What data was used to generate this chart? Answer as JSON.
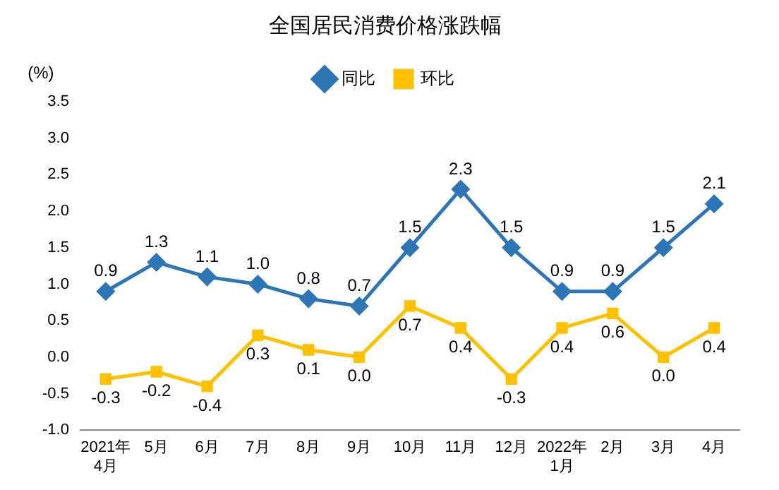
{
  "chart_data": {
    "type": "line",
    "title": "全国居民消费价格涨跌幅",
    "ylabel": "(%)",
    "categories": [
      "2021年\n4月",
      "5月",
      "6月",
      "7月",
      "8月",
      "9月",
      "10月",
      "11月",
      "12月",
      "2022年\n1月",
      "2月",
      "3月",
      "4月"
    ],
    "series": [
      {
        "name": "同比",
        "color": "#2e75b6",
        "marker": "diamond",
        "values": [
          0.9,
          1.3,
          1.1,
          1.0,
          0.8,
          0.7,
          1.5,
          2.3,
          1.5,
          0.9,
          0.9,
          1.5,
          2.1
        ],
        "value_labels": [
          "0.9",
          "1.3",
          "1.1",
          "1.0",
          "0.8",
          "0.7",
          "1.5",
          "2.3",
          "1.5",
          "0.9",
          "0.9",
          "1.5",
          "2.1"
        ]
      },
      {
        "name": "环比",
        "color": "#ffc000",
        "marker": "square",
        "values": [
          -0.3,
          -0.2,
          -0.4,
          0.3,
          0.1,
          0.0,
          0.7,
          0.4,
          -0.3,
          0.4,
          0.6,
          0.0,
          0.4
        ],
        "value_labels": [
          "-0.3",
          "-0.2",
          "-0.4",
          "0.3",
          "0.1",
          "0.0",
          "0.7",
          "0.4",
          "-0.3",
          "0.4",
          "0.6",
          "0.0",
          "0.4"
        ]
      }
    ],
    "ylim": [
      -1.0,
      3.5
    ],
    "yticks": [
      {
        "value": -1.0,
        "label": "-1.0"
      },
      {
        "value": -0.5,
        "label": "-0.5"
      },
      {
        "value": 0,
        "label": "0.0"
      },
      {
        "value": 0.5,
        "label": "0.5"
      },
      {
        "value": 1.0,
        "label": "1.0"
      },
      {
        "value": 1.5,
        "label": "1.5"
      },
      {
        "value": 2.0,
        "label": "2.0"
      },
      {
        "value": 2.5,
        "label": "2.5"
      },
      {
        "value": 3.0,
        "label": "3.0"
      },
      {
        "value": 3.5,
        "label": "3.5"
      }
    ],
    "grid": false,
    "legend": "top",
    "line_style": "solid"
  }
}
